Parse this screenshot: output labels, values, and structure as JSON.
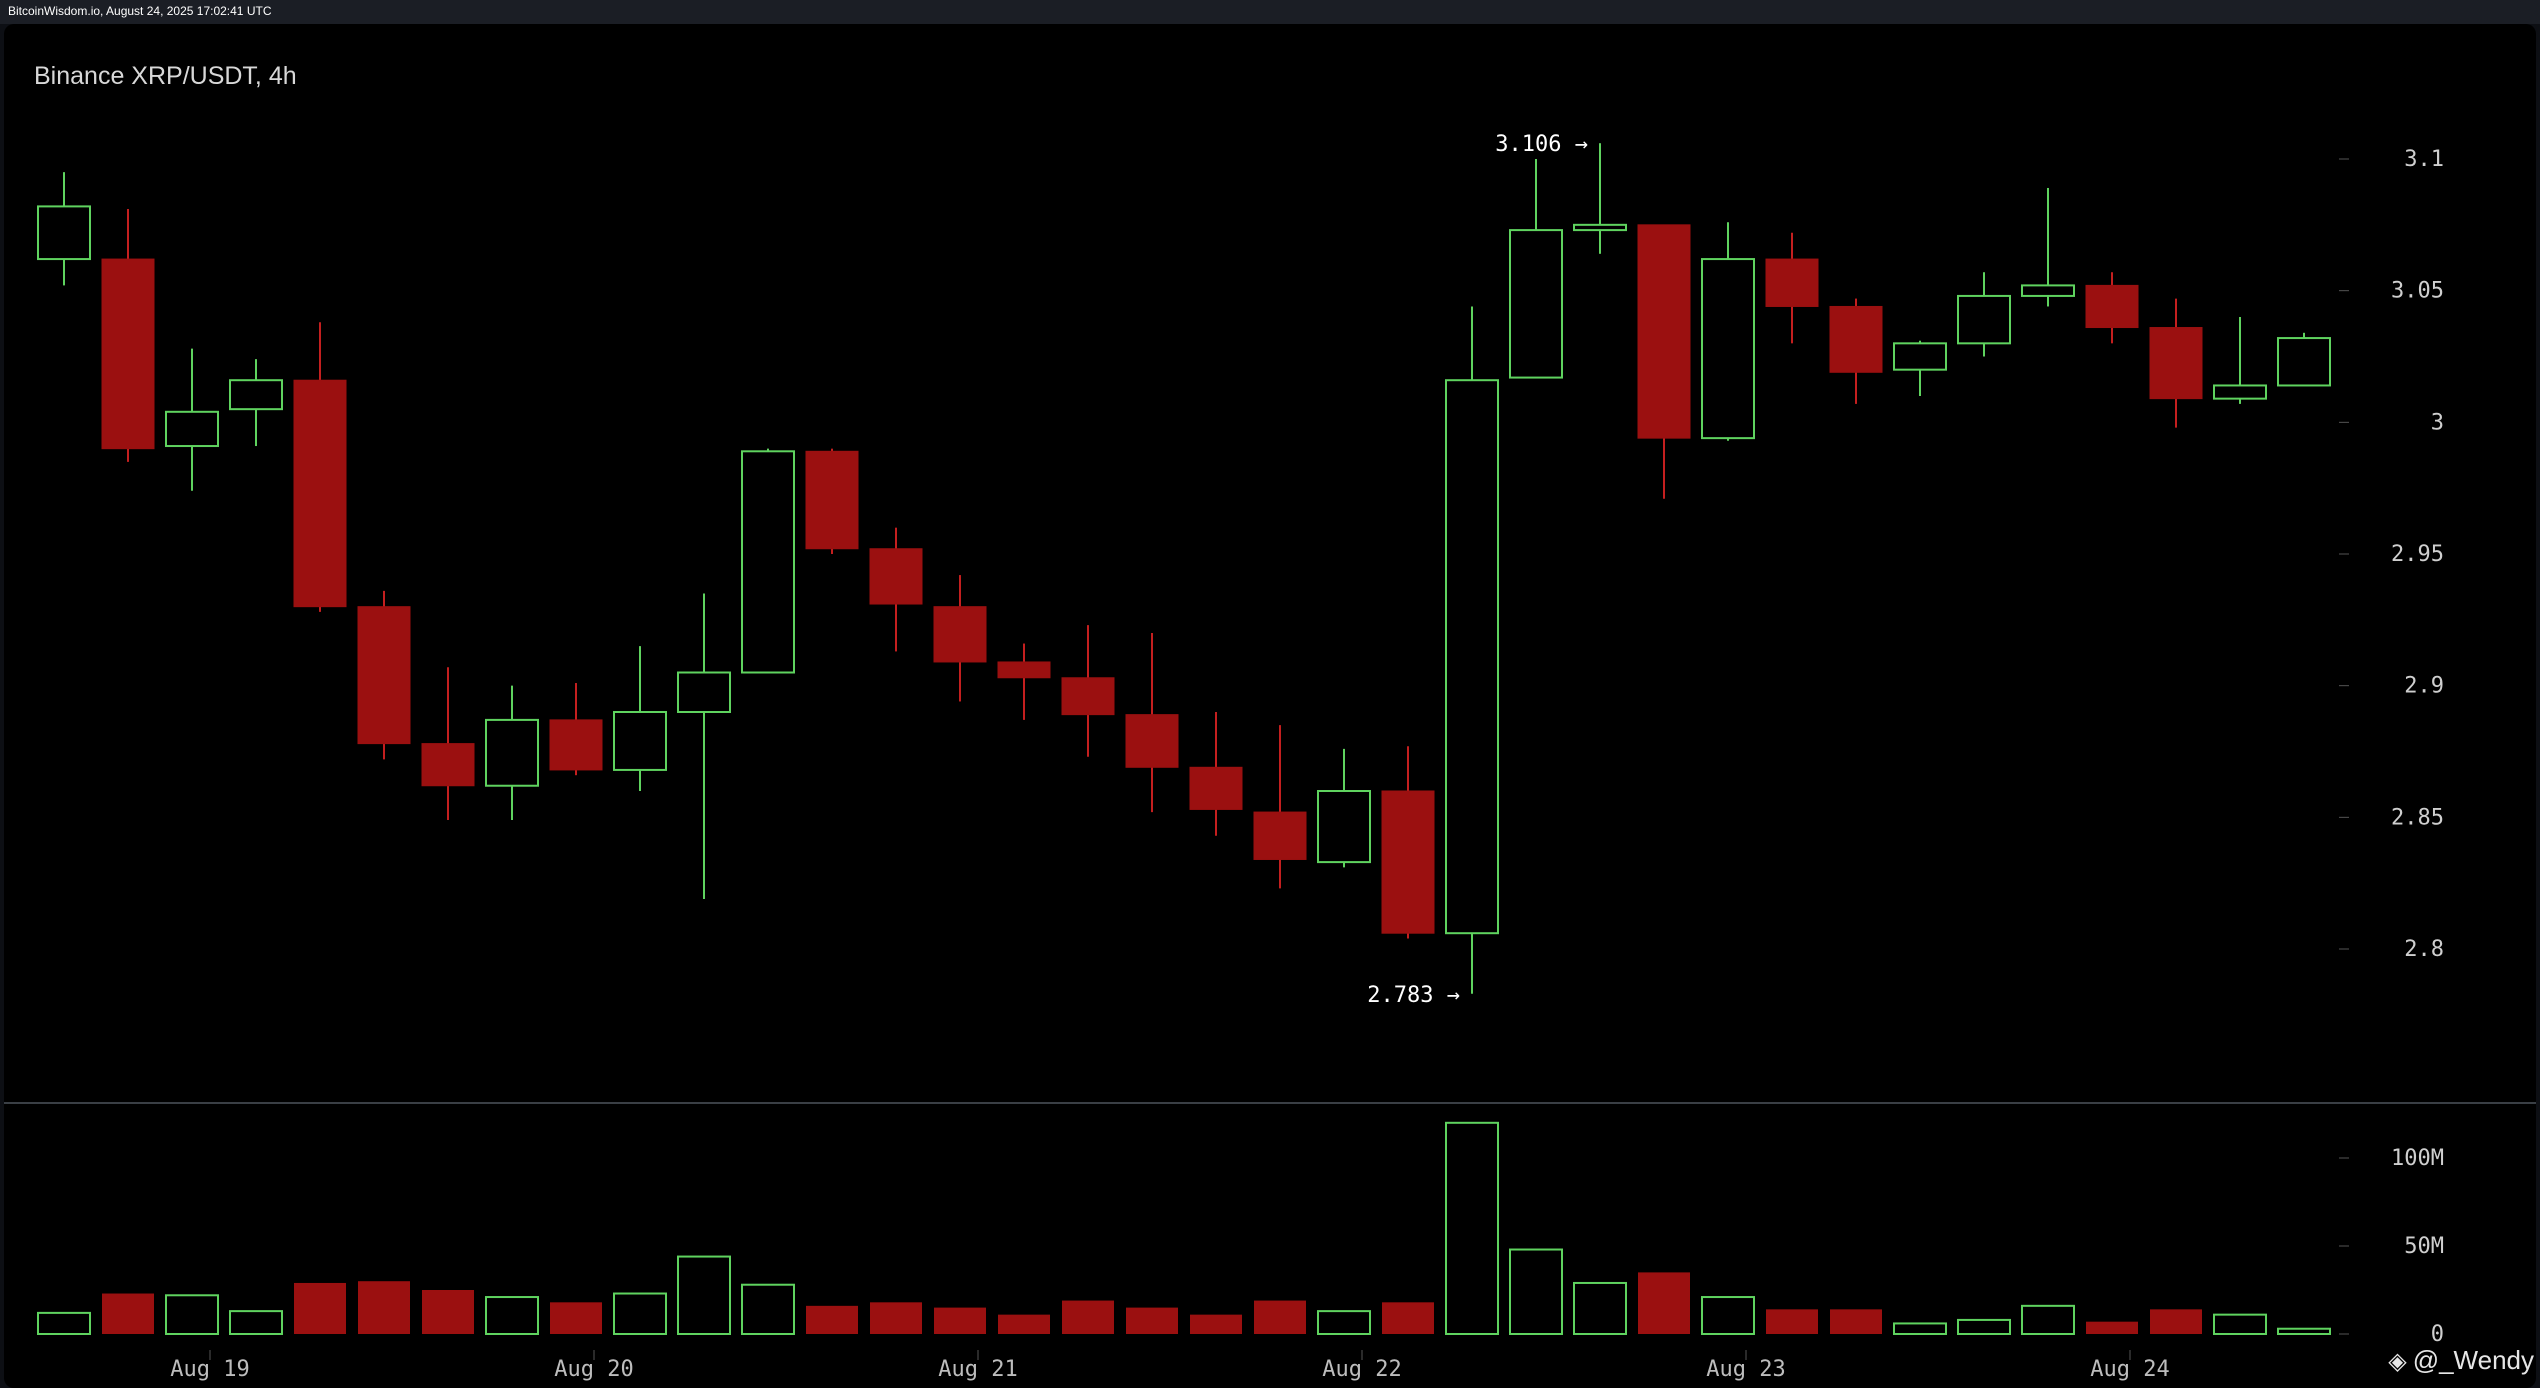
{
  "source_line": "BitcoinWisdom.io, August 24, 2025 17:02:41 UTC",
  "title": "Binance XRP/USDT, 4h",
  "watermark": "@_Wendy",
  "colors": {
    "up": "#5fd35f",
    "down_fill": "#9b1010",
    "down_wick": "#c41f1f",
    "background": "#000000",
    "grid_tick": "#555555",
    "divider": "#3a3f45"
  },
  "chart_data": {
    "type": "candlestick",
    "title": "Binance XRP/USDT, 4h",
    "price_axis": {
      "ticks": [
        2.8,
        2.85,
        2.9,
        2.95,
        3,
        3.05,
        3.1
      ],
      "tick_labels": [
        "2.8",
        "2.85",
        "2.9",
        "2.95",
        "3",
        "3.05",
        "3.1"
      ],
      "range": [
        2.78,
        3.115
      ]
    },
    "volume_axis": {
      "ticks": [
        0,
        50,
        100
      ],
      "tick_labels": [
        "0",
        "50M",
        "100M"
      ],
      "unit": "M"
    },
    "date_labels": [
      {
        "label": "Aug 19",
        "index": 2.5
      },
      {
        "label": "Aug 20",
        "index": 8.5
      },
      {
        "label": "Aug 21",
        "index": 14.5
      },
      {
        "label": "Aug 22",
        "index": 20.5
      },
      {
        "label": "Aug 23",
        "index": 26.5
      },
      {
        "label": "Aug 24",
        "index": 32.5
      }
    ],
    "markers": [
      {
        "label": "3.106 →",
        "value": 3.106,
        "index": 24,
        "side": "left"
      },
      {
        "label": "2.783 →",
        "value": 2.783,
        "index": 22,
        "side": "left"
      }
    ],
    "candles": [
      {
        "o": 3.062,
        "h": 3.095,
        "l": 3.052,
        "c": 3.082,
        "v": 12
      },
      {
        "o": 3.062,
        "h": 3.081,
        "l": 2.985,
        "c": 2.99,
        "v": 23
      },
      {
        "o": 2.991,
        "h": 3.028,
        "l": 2.974,
        "c": 3.004,
        "v": 22
      },
      {
        "o": 3.005,
        "h": 3.024,
        "l": 2.991,
        "c": 3.016,
        "v": 13
      },
      {
        "o": 3.016,
        "h": 3.038,
        "l": 2.928,
        "c": 2.93,
        "v": 29
      },
      {
        "o": 2.93,
        "h": 2.936,
        "l": 2.872,
        "c": 2.878,
        "v": 30
      },
      {
        "o": 2.878,
        "h": 2.907,
        "l": 2.849,
        "c": 2.862,
        "v": 25
      },
      {
        "o": 2.862,
        "h": 2.9,
        "l": 2.849,
        "c": 2.887,
        "v": 21
      },
      {
        "o": 2.887,
        "h": 2.901,
        "l": 2.866,
        "c": 2.868,
        "v": 18
      },
      {
        "o": 2.868,
        "h": 2.915,
        "l": 2.86,
        "c": 2.89,
        "v": 23
      },
      {
        "o": 2.89,
        "h": 2.935,
        "l": 2.819,
        "c": 2.905,
        "v": 44
      },
      {
        "o": 2.905,
        "h": 2.99,
        "l": 2.905,
        "c": 2.989,
        "v": 28
      },
      {
        "o": 2.989,
        "h": 2.99,
        "l": 2.95,
        "c": 2.952,
        "v": 16
      },
      {
        "o": 2.952,
        "h": 2.96,
        "l": 2.913,
        "c": 2.931,
        "v": 18
      },
      {
        "o": 2.93,
        "h": 2.942,
        "l": 2.894,
        "c": 2.909,
        "v": 15
      },
      {
        "o": 2.909,
        "h": 2.916,
        "l": 2.887,
        "c": 2.903,
        "v": 11
      },
      {
        "o": 2.903,
        "h": 2.923,
        "l": 2.873,
        "c": 2.889,
        "v": 19
      },
      {
        "o": 2.889,
        "h": 2.92,
        "l": 2.852,
        "c": 2.869,
        "v": 15
      },
      {
        "o": 2.869,
        "h": 2.89,
        "l": 2.843,
        "c": 2.853,
        "v": 11
      },
      {
        "o": 2.852,
        "h": 2.885,
        "l": 2.823,
        "c": 2.834,
        "v": 19
      },
      {
        "o": 2.833,
        "h": 2.876,
        "l": 2.831,
        "c": 2.86,
        "v": 13
      },
      {
        "o": 2.86,
        "h": 2.877,
        "l": 2.804,
        "c": 2.806,
        "v": 18
      },
      {
        "o": 2.806,
        "h": 3.044,
        "l": 2.783,
        "c": 3.016,
        "v": 120
      },
      {
        "o": 3.017,
        "h": 3.1,
        "l": 3.017,
        "c": 3.073,
        "v": 48
      },
      {
        "o": 3.073,
        "h": 3.106,
        "l": 3.064,
        "c": 3.075,
        "v": 29
      },
      {
        "o": 3.075,
        "h": 3.075,
        "l": 2.971,
        "c": 2.994,
        "v": 35
      },
      {
        "o": 2.994,
        "h": 3.076,
        "l": 2.993,
        "c": 3.062,
        "v": 21
      },
      {
        "o": 3.062,
        "h": 3.072,
        "l": 3.03,
        "c": 3.044,
        "v": 14
      },
      {
        "o": 3.044,
        "h": 3.047,
        "l": 3.007,
        "c": 3.019,
        "v": 14
      },
      {
        "o": 3.02,
        "h": 3.031,
        "l": 3.01,
        "c": 3.03,
        "v": 6
      },
      {
        "o": 3.03,
        "h": 3.057,
        "l": 3.025,
        "c": 3.048,
        "v": 8
      },
      {
        "o": 3.048,
        "h": 3.089,
        "l": 3.044,
        "c": 3.052,
        "v": 16
      },
      {
        "o": 3.052,
        "h": 3.057,
        "l": 3.03,
        "c": 3.036,
        "v": 7
      },
      {
        "o": 3.036,
        "h": 3.047,
        "l": 2.998,
        "c": 3.009,
        "v": 14
      },
      {
        "o": 3.009,
        "h": 3.04,
        "l": 3.007,
        "c": 3.014,
        "v": 11
      },
      {
        "o": 3.014,
        "h": 3.034,
        "l": 3.014,
        "c": 3.032,
        "v": 3
      }
    ]
  }
}
